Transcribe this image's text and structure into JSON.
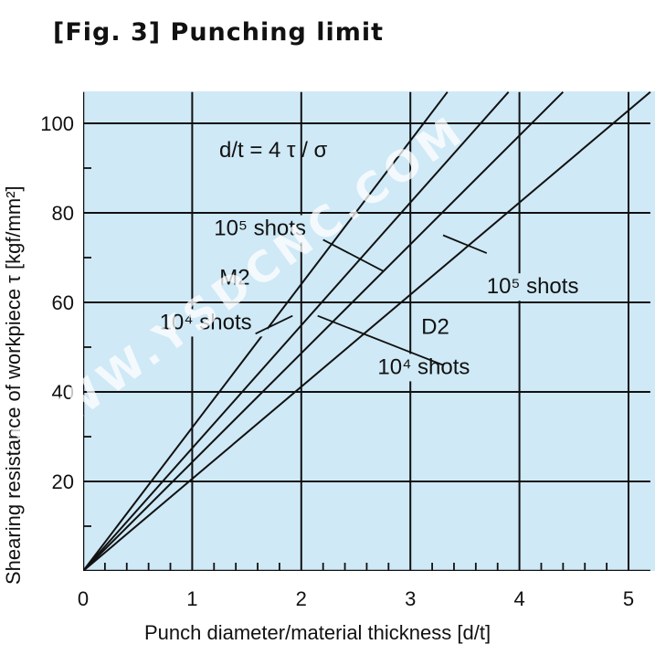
{
  "title": "[Fig. 3] Punching limit",
  "colors": {
    "plot_background": "#cfe9f6",
    "grid": "#111111",
    "line": "#111111"
  },
  "watermark": "WWW.YSDCNC.COM",
  "chart_data": {
    "type": "line",
    "xlabel": "Punch diameter/material thickness [d/t]",
    "ylabel": "Shearing resistance of workpiece τ [kgf/mm²]",
    "xlim": [
      0,
      5.2
    ],
    "ylim": [
      0,
      107
    ],
    "xticks": [
      "0",
      "1",
      "2",
      "3",
      "4",
      "5"
    ],
    "xtick_values": [
      0,
      1,
      2,
      3,
      4,
      5
    ],
    "yticks": [
      "20",
      "40",
      "60",
      "80",
      "100"
    ],
    "ytick_values": [
      20,
      40,
      60,
      80,
      100
    ],
    "grid": true,
    "formula": "d/t = 4 τ / σ",
    "series": [
      {
        "name": "M2 10⁴ shots",
        "x": [
          0,
          3.34
        ],
        "y": [
          0,
          107
        ]
      },
      {
        "name": "M2 10⁵ shots",
        "x": [
          0,
          3.9
        ],
        "y": [
          0,
          107
        ]
      },
      {
        "name": "D2 10⁴ shots",
        "x": [
          0,
          4.4
        ],
        "y": [
          0,
          107
        ]
      },
      {
        "name": "D2 10⁵ shots",
        "x": [
          0,
          5.2
        ],
        "y": [
          0,
          107
        ]
      }
    ],
    "annotations": [
      {
        "text": "10⁵ shots",
        "x": 1.2,
        "y": 75
      },
      {
        "text": "M2",
        "x": 1.25,
        "y": 64
      },
      {
        "text": "10⁴ shots",
        "x": 0.7,
        "y": 54
      },
      {
        "text": "D2",
        "x": 3.1,
        "y": 53
      },
      {
        "text": "10⁴ shots",
        "x": 2.7,
        "y": 44
      },
      {
        "text": "10⁵ shots",
        "x": 3.7,
        "y": 62
      }
    ]
  }
}
